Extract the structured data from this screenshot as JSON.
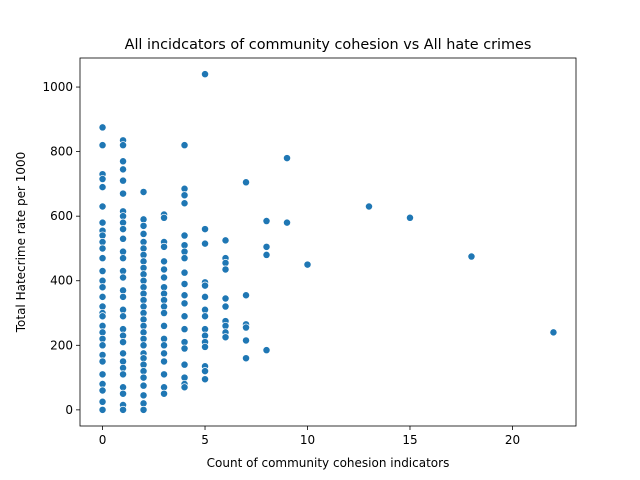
{
  "chart_data": {
    "type": "scatter",
    "title": "All incidcators of community cohesion vs All hate crimes",
    "xlabel": "Count of community cohesion indicators",
    "ylabel": "Total Hatecrime rate per 1000",
    "color": "#1f77b4",
    "xlim": [
      -1.1,
      23.1
    ],
    "ylim": [
      -50,
      1090
    ],
    "xticks": [
      0,
      5,
      10,
      15,
      20
    ],
    "yticks": [
      0,
      200,
      400,
      600,
      800,
      1000
    ],
    "x": [
      0,
      0,
      0,
      0,
      0,
      0,
      0,
      0,
      0,
      0,
      0,
      0,
      0,
      0,
      0,
      0,
      0,
      0,
      0,
      0,
      0,
      0,
      0,
      0,
      0,
      0,
      0,
      0,
      0,
      0,
      1,
      1,
      1,
      1,
      1,
      1,
      1,
      1,
      1,
      1,
      1,
      1,
      1,
      1,
      1,
      1,
      1,
      1,
      1,
      1,
      1,
      1,
      1,
      1,
      1,
      1,
      1,
      1,
      1,
      1,
      2,
      2,
      2,
      2,
      2,
      2,
      2,
      2,
      2,
      2,
      2,
      2,
      2,
      2,
      2,
      2,
      2,
      2,
      2,
      2,
      2,
      2,
      2,
      2,
      2,
      2,
      2,
      2,
      2,
      2,
      3,
      3,
      3,
      3,
      3,
      3,
      3,
      3,
      3,
      3,
      3,
      3,
      3,
      3,
      3,
      3,
      3,
      3,
      3,
      3,
      4,
      4,
      4,
      4,
      4,
      4,
      4,
      4,
      4,
      4,
      4,
      4,
      4,
      4,
      4,
      4,
      4,
      4,
      4,
      4,
      5,
      5,
      5,
      5,
      5,
      5,
      5,
      5,
      5,
      5,
      5,
      5,
      5,
      5,
      5,
      6,
      6,
      6,
      6,
      6,
      6,
      6,
      6,
      6,
      6,
      7,
      7,
      7,
      7,
      7,
      7,
      8,
      8,
      8,
      8,
      9,
      9,
      10,
      13,
      15,
      18,
      22
    ],
    "values": [
      875,
      820,
      730,
      715,
      690,
      630,
      580,
      555,
      540,
      520,
      500,
      470,
      430,
      400,
      380,
      350,
      320,
      300,
      290,
      260,
      240,
      220,
      200,
      170,
      150,
      110,
      80,
      60,
      25,
      0,
      835,
      820,
      770,
      745,
      710,
      670,
      615,
      600,
      580,
      560,
      530,
      490,
      470,
      430,
      410,
      370,
      350,
      310,
      290,
      250,
      230,
      210,
      175,
      150,
      130,
      110,
      70,
      50,
      15,
      0,
      675,
      590,
      570,
      545,
      520,
      500,
      480,
      460,
      440,
      420,
      400,
      380,
      360,
      340,
      320,
      300,
      280,
      260,
      240,
      220,
      200,
      175,
      160,
      140,
      120,
      100,
      75,
      45,
      20,
      0,
      605,
      595,
      520,
      505,
      460,
      435,
      410,
      380,
      360,
      340,
      320,
      300,
      260,
      220,
      200,
      175,
      150,
      110,
      70,
      50,
      820,
      685,
      665,
      640,
      540,
      510,
      490,
      470,
      425,
      390,
      355,
      330,
      290,
      250,
      210,
      190,
      140,
      100,
      80,
      70,
      1040,
      560,
      515,
      395,
      385,
      350,
      310,
      290,
      250,
      230,
      210,
      195,
      135,
      120,
      95,
      525,
      470,
      455,
      435,
      345,
      320,
      275,
      260,
      240,
      225,
      705,
      355,
      265,
      255,
      215,
      160,
      585,
      505,
      480,
      185,
      780,
      580,
      450,
      630,
      595,
      475,
      240
    ]
  }
}
